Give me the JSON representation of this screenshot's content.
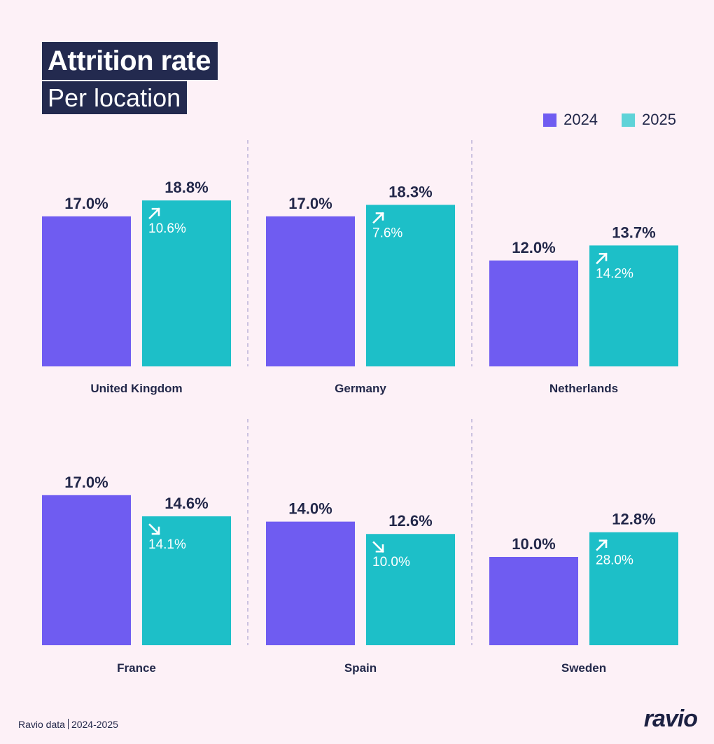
{
  "header": {
    "title": "Attrition rate",
    "subtitle": "Per location"
  },
  "colors": {
    "series_2024": "#6f5cf1",
    "series_2025": "#1dbfc8",
    "legend_2025": "#5ed3d8",
    "text": "#23284a",
    "divider": "#9a93c8",
    "background": "#fdf1f7"
  },
  "legend": [
    {
      "label": "2024",
      "color": "#6f5cf1"
    },
    {
      "label": "2025",
      "color": "#5ed3d8"
    }
  ],
  "chart_data": {
    "type": "bar",
    "title": "Attrition rate",
    "subtitle": "Per location",
    "xlabel": "",
    "ylabel": "",
    "unit": "%",
    "categories": [
      "United Kingdom",
      "Germany",
      "Netherlands",
      "France",
      "Spain",
      "Sweden"
    ],
    "series": [
      {
        "name": "2024",
        "values": [
          17.0,
          17.0,
          12.0,
          17.0,
          14.0,
          10.0
        ]
      },
      {
        "name": "2025",
        "values": [
          18.8,
          18.3,
          13.7,
          14.6,
          12.6,
          12.8
        ]
      }
    ],
    "change": [
      {
        "direction": "up",
        "label": "10.6%"
      },
      {
        "direction": "up",
        "label": "7.6%"
      },
      {
        "direction": "up",
        "label": "14.2%"
      },
      {
        "direction": "down",
        "label": "14.1%"
      },
      {
        "direction": "down",
        "label": "10.0%"
      },
      {
        "direction": "up",
        "label": "28.0%"
      }
    ],
    "value_labels_2024": [
      "17.0%",
      "17.0%",
      "12.0%",
      "17.0%",
      "14.0%",
      "10.0%"
    ],
    "value_labels_2025": [
      "18.8%",
      "18.3%",
      "13.7%",
      "14.6%",
      "12.6%",
      "12.8%"
    ],
    "layout": "2 rows x 3 panels",
    "grid": false,
    "legend_position": "top-right"
  },
  "footer": {
    "source": "Ravio data",
    "period": "2024-2025",
    "logo": "ravio"
  }
}
